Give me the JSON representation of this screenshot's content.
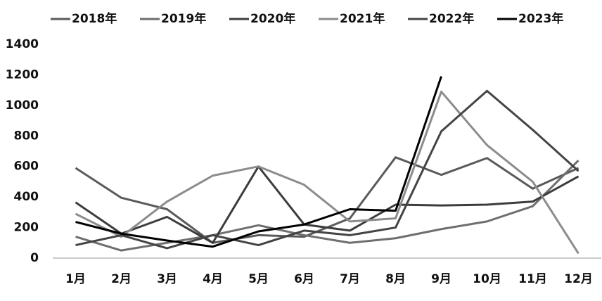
{
  "chart_data": {
    "type": "line",
    "categories": [
      "1月",
      "2月",
      "3月",
      "4月",
      "5月",
      "6月",
      "7月",
      "8月",
      "9月",
      "10月",
      "11月",
      "12月"
    ],
    "series": [
      {
        "name": "2018年",
        "color": "#5a5a5a",
        "values": [
          590,
          395,
          320,
          100,
          150,
          140,
          260,
          660,
          545,
          655,
          455,
          590
        ]
      },
      {
        "name": "2019年",
        "color": "#6e6e6e",
        "values": [
          140,
          50,
          100,
          150,
          215,
          150,
          100,
          130,
          190,
          240,
          340,
          640
        ]
      },
      {
        "name": "2020年",
        "color": "#3c3c3c",
        "values": [
          365,
          160,
          270,
          100,
          600,
          220,
          180,
          350,
          345,
          350,
          370,
          535
        ]
      },
      {
        "name": "2021年",
        "color": "#8c8c8c",
        "values": [
          290,
          140,
          370,
          540,
          600,
          480,
          240,
          260,
          1090,
          740,
          500,
          30
        ]
      },
      {
        "name": "2022年",
        "color": "#444444",
        "values": [
          85,
          150,
          65,
          150,
          85,
          180,
          150,
          200,
          830,
          1095,
          840,
          570
        ]
      },
      {
        "name": "2023年",
        "color": "#000000",
        "values": [
          237,
          160,
          115,
          75,
          175,
          220,
          320,
          310,
          1190,
          null,
          null,
          null
        ]
      }
    ],
    "ylim": [
      0,
      1400
    ],
    "yticks": [
      0,
      200,
      400,
      600,
      800,
      1000,
      1200,
      1400
    ],
    "legend": "top",
    "grid": false
  }
}
